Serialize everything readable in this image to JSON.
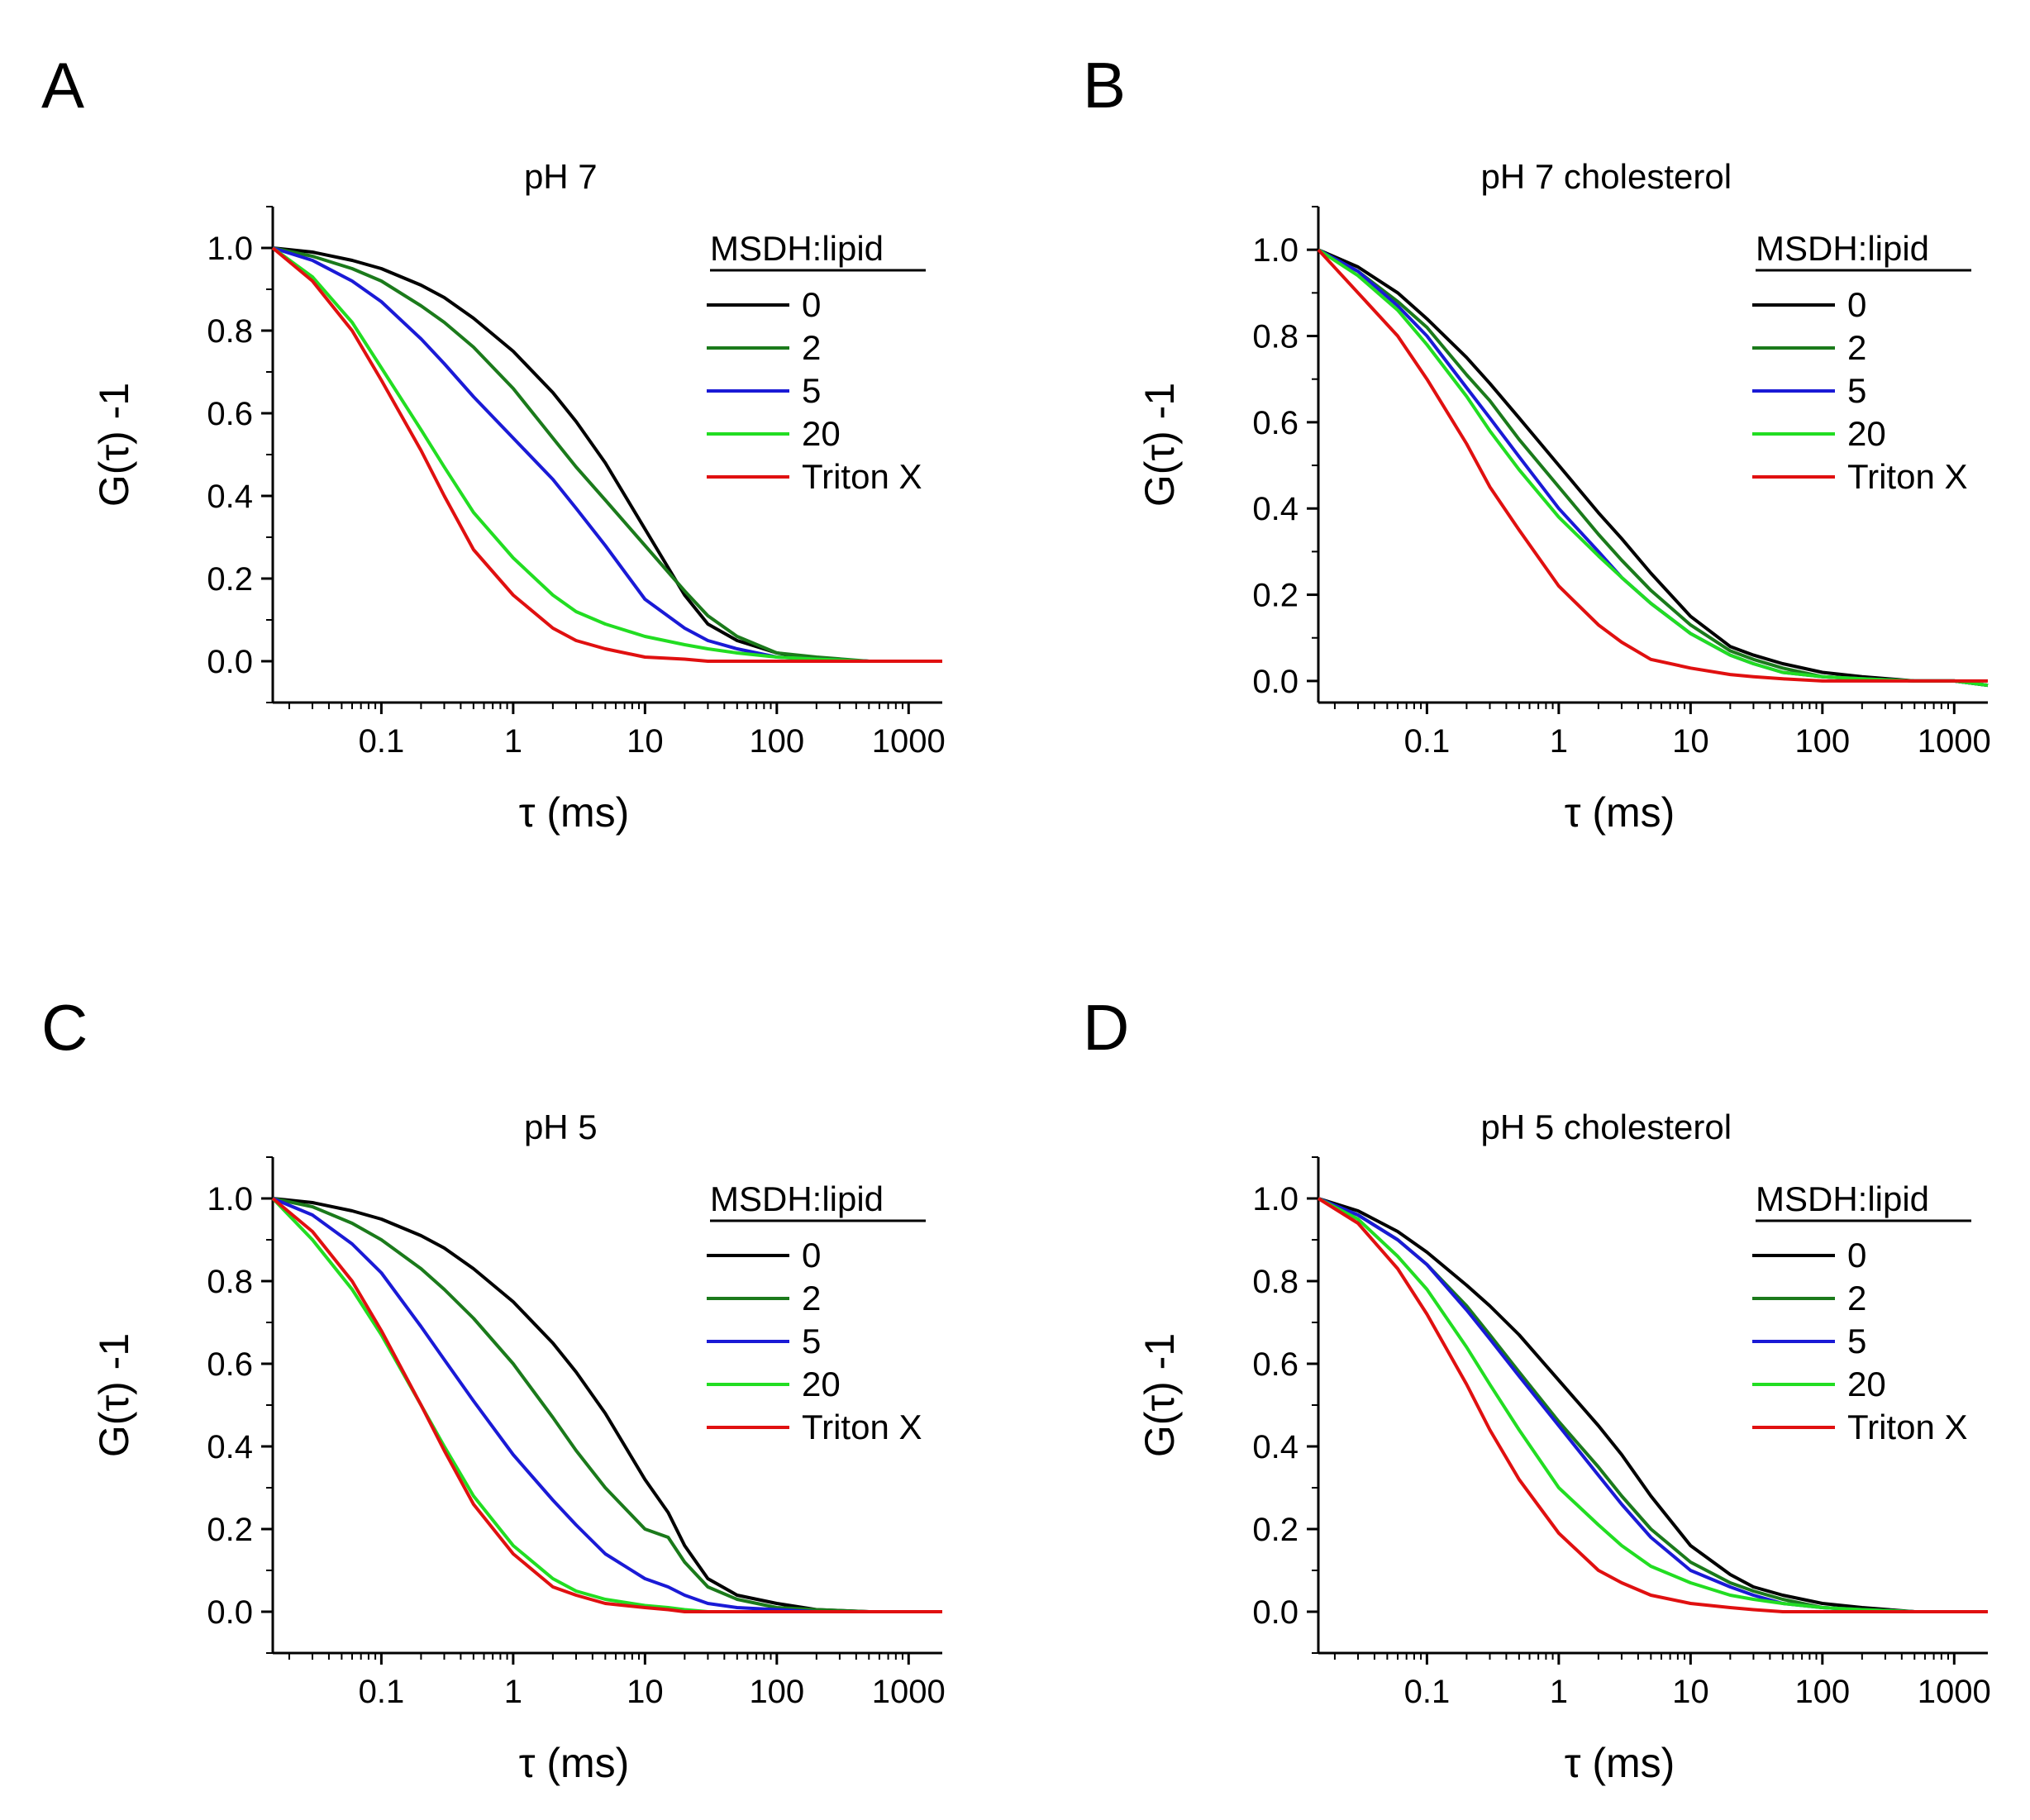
{
  "figure": {
    "legend_title": "MSDH:lipid",
    "xlabel": "τ (ms)",
    "ylabel": "G(τ) -1",
    "series_colors": {
      "0": "#000000",
      "2": "#1b7a1b",
      "5": "#1a1ad6",
      "20": "#22dd22",
      "Triton X": "#e01010"
    }
  },
  "chart_data": [
    {
      "type": "line",
      "panel": "A",
      "title": "pH 7",
      "xlabel": "τ (ms)",
      "ylabel": "G(τ) -1",
      "xscale": "log",
      "xlim": [
        0.015,
        1800
      ],
      "ylim": [
        -0.1,
        1.1
      ],
      "xticks": [
        0.1,
        1,
        10,
        100,
        1000
      ],
      "xtick_labels": [
        "0.1",
        "1",
        "10",
        "100",
        "1000"
      ],
      "yticks": [
        0.0,
        0.2,
        0.4,
        0.6,
        0.8,
        1.0
      ],
      "ytick_labels": [
        "0.0",
        "0.2",
        "0.4",
        "0.6",
        "0.8",
        "1.0"
      ],
      "legend_title": "MSDH:lipid",
      "legend_position": "top-right",
      "x": [
        0.015,
        0.03,
        0.06,
        0.1,
        0.2,
        0.3,
        0.5,
        1,
        2,
        3,
        5,
        10,
        20,
        30,
        50,
        100,
        200,
        500,
        1000,
        1800
      ],
      "series": [
        {
          "name": "0",
          "color": "#000000",
          "values": [
            1.0,
            0.99,
            0.97,
            0.95,
            0.91,
            0.88,
            0.83,
            0.75,
            0.65,
            0.58,
            0.48,
            0.32,
            0.16,
            0.09,
            0.05,
            0.02,
            0.005,
            0.0,
            0.0,
            0.0
          ]
        },
        {
          "name": "2",
          "color": "#1b7a1b",
          "values": [
            1.0,
            0.98,
            0.95,
            0.92,
            0.86,
            0.82,
            0.76,
            0.66,
            0.54,
            0.47,
            0.39,
            0.28,
            0.17,
            0.11,
            0.06,
            0.02,
            0.01,
            0.0,
            0.0,
            0.0
          ]
        },
        {
          "name": "5",
          "color": "#1a1ad6",
          "values": [
            1.0,
            0.97,
            0.92,
            0.87,
            0.78,
            0.72,
            0.64,
            0.54,
            0.44,
            0.37,
            0.28,
            0.15,
            0.08,
            0.05,
            0.03,
            0.01,
            0.005,
            0.0,
            0.0,
            0.0
          ]
        },
        {
          "name": "20",
          "color": "#22dd22",
          "values": [
            1.0,
            0.93,
            0.82,
            0.71,
            0.56,
            0.47,
            0.36,
            0.25,
            0.16,
            0.12,
            0.09,
            0.06,
            0.04,
            0.03,
            0.02,
            0.01,
            0.005,
            0.0,
            0.0,
            0.0
          ]
        },
        {
          "name": "Triton X",
          "color": "#e01010",
          "values": [
            1.0,
            0.92,
            0.8,
            0.68,
            0.51,
            0.4,
            0.27,
            0.16,
            0.08,
            0.05,
            0.03,
            0.01,
            0.005,
            0.0,
            0.0,
            0.0,
            0.0,
            0.0,
            0.0,
            0.0
          ]
        }
      ]
    },
    {
      "type": "line",
      "panel": "B",
      "title": "pH 7 cholesterol",
      "xlabel": "τ (ms)",
      "ylabel": "G(τ) -1",
      "xscale": "log",
      "xlim": [
        0.015,
        1800
      ],
      "ylim": [
        -0.05,
        1.1
      ],
      "xticks": [
        0.1,
        1,
        10,
        100,
        1000
      ],
      "xtick_labels": [
        "0.1",
        "1",
        "10",
        "100",
        "1000"
      ],
      "yticks": [
        0.0,
        0.2,
        0.4,
        0.6,
        0.8,
        1.0
      ],
      "ytick_labels": [
        "0.0",
        "0.2",
        "0.4",
        "0.6",
        "0.8",
        "1.0"
      ],
      "legend_title": "MSDH:lipid",
      "legend_position": "top-right",
      "x": [
        0.015,
        0.03,
        0.06,
        0.1,
        0.2,
        0.3,
        0.5,
        1,
        2,
        3,
        5,
        10,
        20,
        30,
        50,
        100,
        200,
        500,
        1000,
        1800
      ],
      "series": [
        {
          "name": "0",
          "color": "#000000",
          "values": [
            1.0,
            0.96,
            0.9,
            0.84,
            0.75,
            0.69,
            0.61,
            0.5,
            0.39,
            0.33,
            0.25,
            0.15,
            0.08,
            0.06,
            0.04,
            0.02,
            0.01,
            0.0,
            0.0,
            -0.01
          ]
        },
        {
          "name": "2",
          "color": "#1b7a1b",
          "values": [
            1.0,
            0.95,
            0.88,
            0.82,
            0.71,
            0.65,
            0.56,
            0.45,
            0.34,
            0.28,
            0.21,
            0.13,
            0.07,
            0.05,
            0.03,
            0.01,
            0.005,
            0.0,
            0.0,
            -0.01
          ]
        },
        {
          "name": "5",
          "color": "#1a1ad6",
          "values": [
            1.0,
            0.95,
            0.87,
            0.8,
            0.68,
            0.61,
            0.52,
            0.4,
            0.3,
            0.24,
            0.18,
            0.11,
            0.06,
            0.04,
            0.02,
            0.01,
            0.005,
            0.0,
            0.0,
            -0.01
          ]
        },
        {
          "name": "20",
          "color": "#22dd22",
          "values": [
            1.0,
            0.94,
            0.86,
            0.78,
            0.66,
            0.58,
            0.49,
            0.38,
            0.29,
            0.24,
            0.18,
            0.11,
            0.06,
            0.04,
            0.02,
            0.01,
            0.005,
            0.0,
            0.0,
            -0.01
          ]
        },
        {
          "name": "Triton X",
          "color": "#e01010",
          "values": [
            1.0,
            0.9,
            0.8,
            0.7,
            0.55,
            0.45,
            0.35,
            0.22,
            0.13,
            0.09,
            0.05,
            0.03,
            0.015,
            0.01,
            0.005,
            0.0,
            0.0,
            0.0,
            0.0,
            0.0
          ]
        }
      ]
    },
    {
      "type": "line",
      "panel": "C",
      "title": "pH 5",
      "xlabel": "τ (ms)",
      "ylabel": "G(τ) -1",
      "xscale": "log",
      "xlim": [
        0.015,
        1800
      ],
      "ylim": [
        -0.1,
        1.1
      ],
      "xticks": [
        0.1,
        1,
        10,
        100,
        1000
      ],
      "xtick_labels": [
        "0.1",
        "1",
        "10",
        "100",
        "1000"
      ],
      "yticks": [
        0.0,
        0.2,
        0.4,
        0.6,
        0.8,
        1.0
      ],
      "ytick_labels": [
        "0.0",
        "0.2",
        "0.4",
        "0.6",
        "0.8",
        "1.0"
      ],
      "legend_title": "MSDH:lipid",
      "legend_position": "top-right",
      "x": [
        0.015,
        0.03,
        0.06,
        0.1,
        0.2,
        0.3,
        0.5,
        1,
        2,
        3,
        5,
        10,
        15,
        20,
        30,
        50,
        100,
        200,
        500,
        1000,
        1800
      ],
      "series": [
        {
          "name": "0",
          "color": "#000000",
          "values": [
            1.0,
            0.99,
            0.97,
            0.95,
            0.91,
            0.88,
            0.83,
            0.75,
            0.65,
            0.58,
            0.48,
            0.32,
            0.24,
            0.16,
            0.08,
            0.04,
            0.02,
            0.005,
            0.0,
            0.0,
            0.0
          ]
        },
        {
          "name": "2",
          "color": "#1b7a1b",
          "values": [
            1.0,
            0.98,
            0.94,
            0.9,
            0.83,
            0.78,
            0.71,
            0.6,
            0.47,
            0.39,
            0.3,
            0.2,
            0.18,
            0.12,
            0.06,
            0.03,
            0.01,
            0.005,
            0.0,
            0.0,
            0.0
          ]
        },
        {
          "name": "5",
          "color": "#1a1ad6",
          "values": [
            1.0,
            0.96,
            0.89,
            0.82,
            0.69,
            0.61,
            0.51,
            0.38,
            0.27,
            0.21,
            0.14,
            0.08,
            0.06,
            0.04,
            0.02,
            0.01,
            0.005,
            0.0,
            0.0,
            0.0,
            0.0
          ]
        },
        {
          "name": "20",
          "color": "#22dd22",
          "values": [
            1.0,
            0.9,
            0.78,
            0.67,
            0.5,
            0.4,
            0.28,
            0.16,
            0.08,
            0.05,
            0.03,
            0.015,
            0.01,
            0.005,
            0.0,
            0.0,
            0.0,
            0.0,
            0.0,
            0.0,
            0.0
          ]
        },
        {
          "name": "Triton X",
          "color": "#e01010",
          "values": [
            1.0,
            0.92,
            0.8,
            0.68,
            0.5,
            0.39,
            0.26,
            0.14,
            0.06,
            0.04,
            0.02,
            0.01,
            0.005,
            0.0,
            0.0,
            0.0,
            0.0,
            0.0,
            0.0,
            0.0,
            0.0
          ]
        }
      ]
    },
    {
      "type": "line",
      "panel": "D",
      "title": "pH 5 cholesterol",
      "xlabel": "τ (ms)",
      "ylabel": "G(τ) -1",
      "xscale": "log",
      "xlim": [
        0.015,
        1800
      ],
      "ylim": [
        -0.1,
        1.1
      ],
      "xticks": [
        0.1,
        1,
        10,
        100,
        1000
      ],
      "xtick_labels": [
        "0.1",
        "1",
        "10",
        "100",
        "1000"
      ],
      "yticks": [
        0.0,
        0.2,
        0.4,
        0.6,
        0.8,
        1.0
      ],
      "ytick_labels": [
        "0.0",
        "0.2",
        "0.4",
        "0.6",
        "0.8",
        "1.0"
      ],
      "legend_title": "MSDH:lipid",
      "legend_position": "top-right",
      "x": [
        0.015,
        0.03,
        0.06,
        0.1,
        0.2,
        0.3,
        0.5,
        1,
        2,
        3,
        5,
        10,
        20,
        30,
        50,
        100,
        200,
        500,
        1000,
        1800
      ],
      "series": [
        {
          "name": "0",
          "color": "#000000",
          "values": [
            1.0,
            0.97,
            0.92,
            0.87,
            0.79,
            0.74,
            0.67,
            0.56,
            0.45,
            0.38,
            0.28,
            0.16,
            0.09,
            0.06,
            0.04,
            0.02,
            0.01,
            0.0,
            0.0,
            0.0
          ]
        },
        {
          "name": "2",
          "color": "#1b7a1b",
          "values": [
            1.0,
            0.96,
            0.9,
            0.84,
            0.74,
            0.67,
            0.58,
            0.46,
            0.35,
            0.28,
            0.2,
            0.12,
            0.07,
            0.05,
            0.03,
            0.01,
            0.005,
            0.0,
            0.0,
            0.0
          ]
        },
        {
          "name": "5",
          "color": "#1a1ad6",
          "values": [
            1.0,
            0.96,
            0.9,
            0.84,
            0.73,
            0.66,
            0.57,
            0.45,
            0.33,
            0.26,
            0.18,
            0.1,
            0.06,
            0.04,
            0.02,
            0.01,
            0.005,
            0.0,
            0.0,
            0.0
          ]
        },
        {
          "name": "20",
          "color": "#22dd22",
          "values": [
            1.0,
            0.95,
            0.86,
            0.78,
            0.64,
            0.55,
            0.44,
            0.3,
            0.21,
            0.16,
            0.11,
            0.07,
            0.04,
            0.03,
            0.02,
            0.01,
            0.005,
            0.0,
            0.0,
            0.0
          ]
        },
        {
          "name": "Triton X",
          "color": "#e01010",
          "values": [
            1.0,
            0.94,
            0.83,
            0.72,
            0.55,
            0.44,
            0.32,
            0.19,
            0.1,
            0.07,
            0.04,
            0.02,
            0.01,
            0.005,
            0.0,
            0.0,
            0.0,
            0.0,
            0.0,
            0.0
          ]
        }
      ]
    }
  ]
}
